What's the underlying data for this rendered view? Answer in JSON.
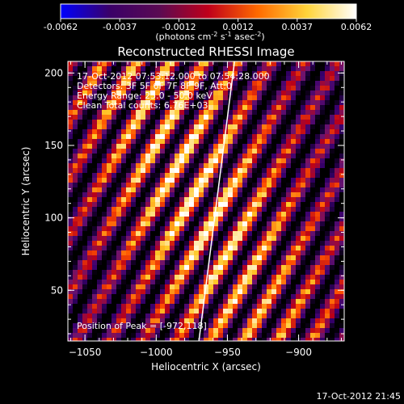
{
  "chart_data": {
    "type": "heatmap",
    "title": "Reconstructed RHESSI Image",
    "xlabel": "Heliocentric X (arcsec)",
    "ylabel": "Heliocentric Y (arcsec)",
    "xlim": [
      -1062,
      -868
    ],
    "ylim": [
      15,
      208
    ],
    "x_ticks": [
      -1050,
      -1000,
      -950,
      -900
    ],
    "y_ticks": [
      50,
      100,
      150,
      200
    ],
    "colorbar": {
      "min": -0.0062,
      "max": 0.0062,
      "ticks": [
        "-0.0062",
        "-0.0037",
        "-0.0012",
        "0.0012",
        "0.0037",
        "0.0062"
      ],
      "label_text": "(photons cm",
      "label_exp1": "-2",
      "label_mid": " s",
      "label_exp2": "-1",
      "label_mid2": " asec",
      "label_exp3": "-2",
      "label_end": ")",
      "colors": [
        "#0000ff",
        "#3a0068",
        "#5a0a52",
        "#c0001a",
        "#ff6a00",
        "#ffd43a",
        "#ffffff"
      ]
    },
    "info_lines": [
      "17-Oct-2012 07:53:12.000 to 07:54:28.000",
      "Detectors: 3F 5F 6F 7F 8F 9F, Att:0",
      "Energy Range: 25.0 - 50.0 keV",
      "Clean     Total counts: 6.76E+03"
    ],
    "peak_label": "Position of Peak = [-972,118]",
    "peak": [
      -972,
      118
    ],
    "limb_line": [
      [
        -970,
        15
      ],
      [
        -945,
        208
      ]
    ],
    "timestamp": "17-Oct-2012 21:45"
  }
}
